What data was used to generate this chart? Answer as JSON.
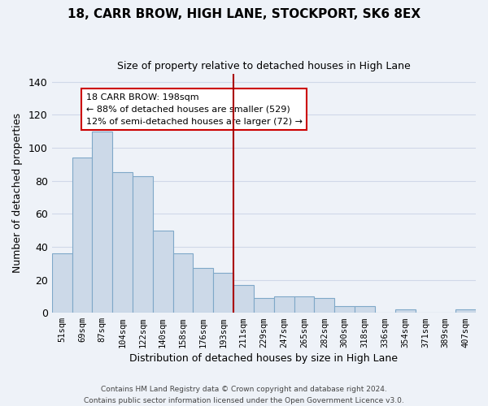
{
  "title": "18, CARR BROW, HIGH LANE, STOCKPORT, SK6 8EX",
  "subtitle": "Size of property relative to detached houses in High Lane",
  "xlabel": "Distribution of detached houses by size in High Lane",
  "ylabel": "Number of detached properties",
  "bar_color": "#ccd9e8",
  "bar_edge_color": "#7fa8c8",
  "categories": [
    "51sqm",
    "69sqm",
    "87sqm",
    "104sqm",
    "122sqm",
    "140sqm",
    "158sqm",
    "176sqm",
    "193sqm",
    "211sqm",
    "229sqm",
    "247sqm",
    "265sqm",
    "282sqm",
    "300sqm",
    "318sqm",
    "336sqm",
    "354sqm",
    "371sqm",
    "389sqm",
    "407sqm"
  ],
  "values": [
    36,
    94,
    110,
    85,
    83,
    50,
    36,
    27,
    24,
    17,
    9,
    10,
    10,
    9,
    4,
    4,
    0,
    2,
    0,
    0,
    2
  ],
  "vline_x_idx": 8.5,
  "vline_color": "#aa0000",
  "ylim": [
    0,
    145
  ],
  "yticks": [
    0,
    20,
    40,
    60,
    80,
    100,
    120,
    140
  ],
  "annotation_title": "18 CARR BROW: 198sqm",
  "annotation_line1": "← 88% of detached houses are smaller (529)",
  "annotation_line2": "12% of semi-detached houses are larger (72) →",
  "annotation_box_color": "#ffffff",
  "annotation_box_edge": "#cc0000",
  "footer_line1": "Contains HM Land Registry data © Crown copyright and database right 2024.",
  "footer_line2": "Contains public sector information licensed under the Open Government Licence v3.0.",
  "background_color": "#eef2f8",
  "grid_color": "#d0d8e8"
}
